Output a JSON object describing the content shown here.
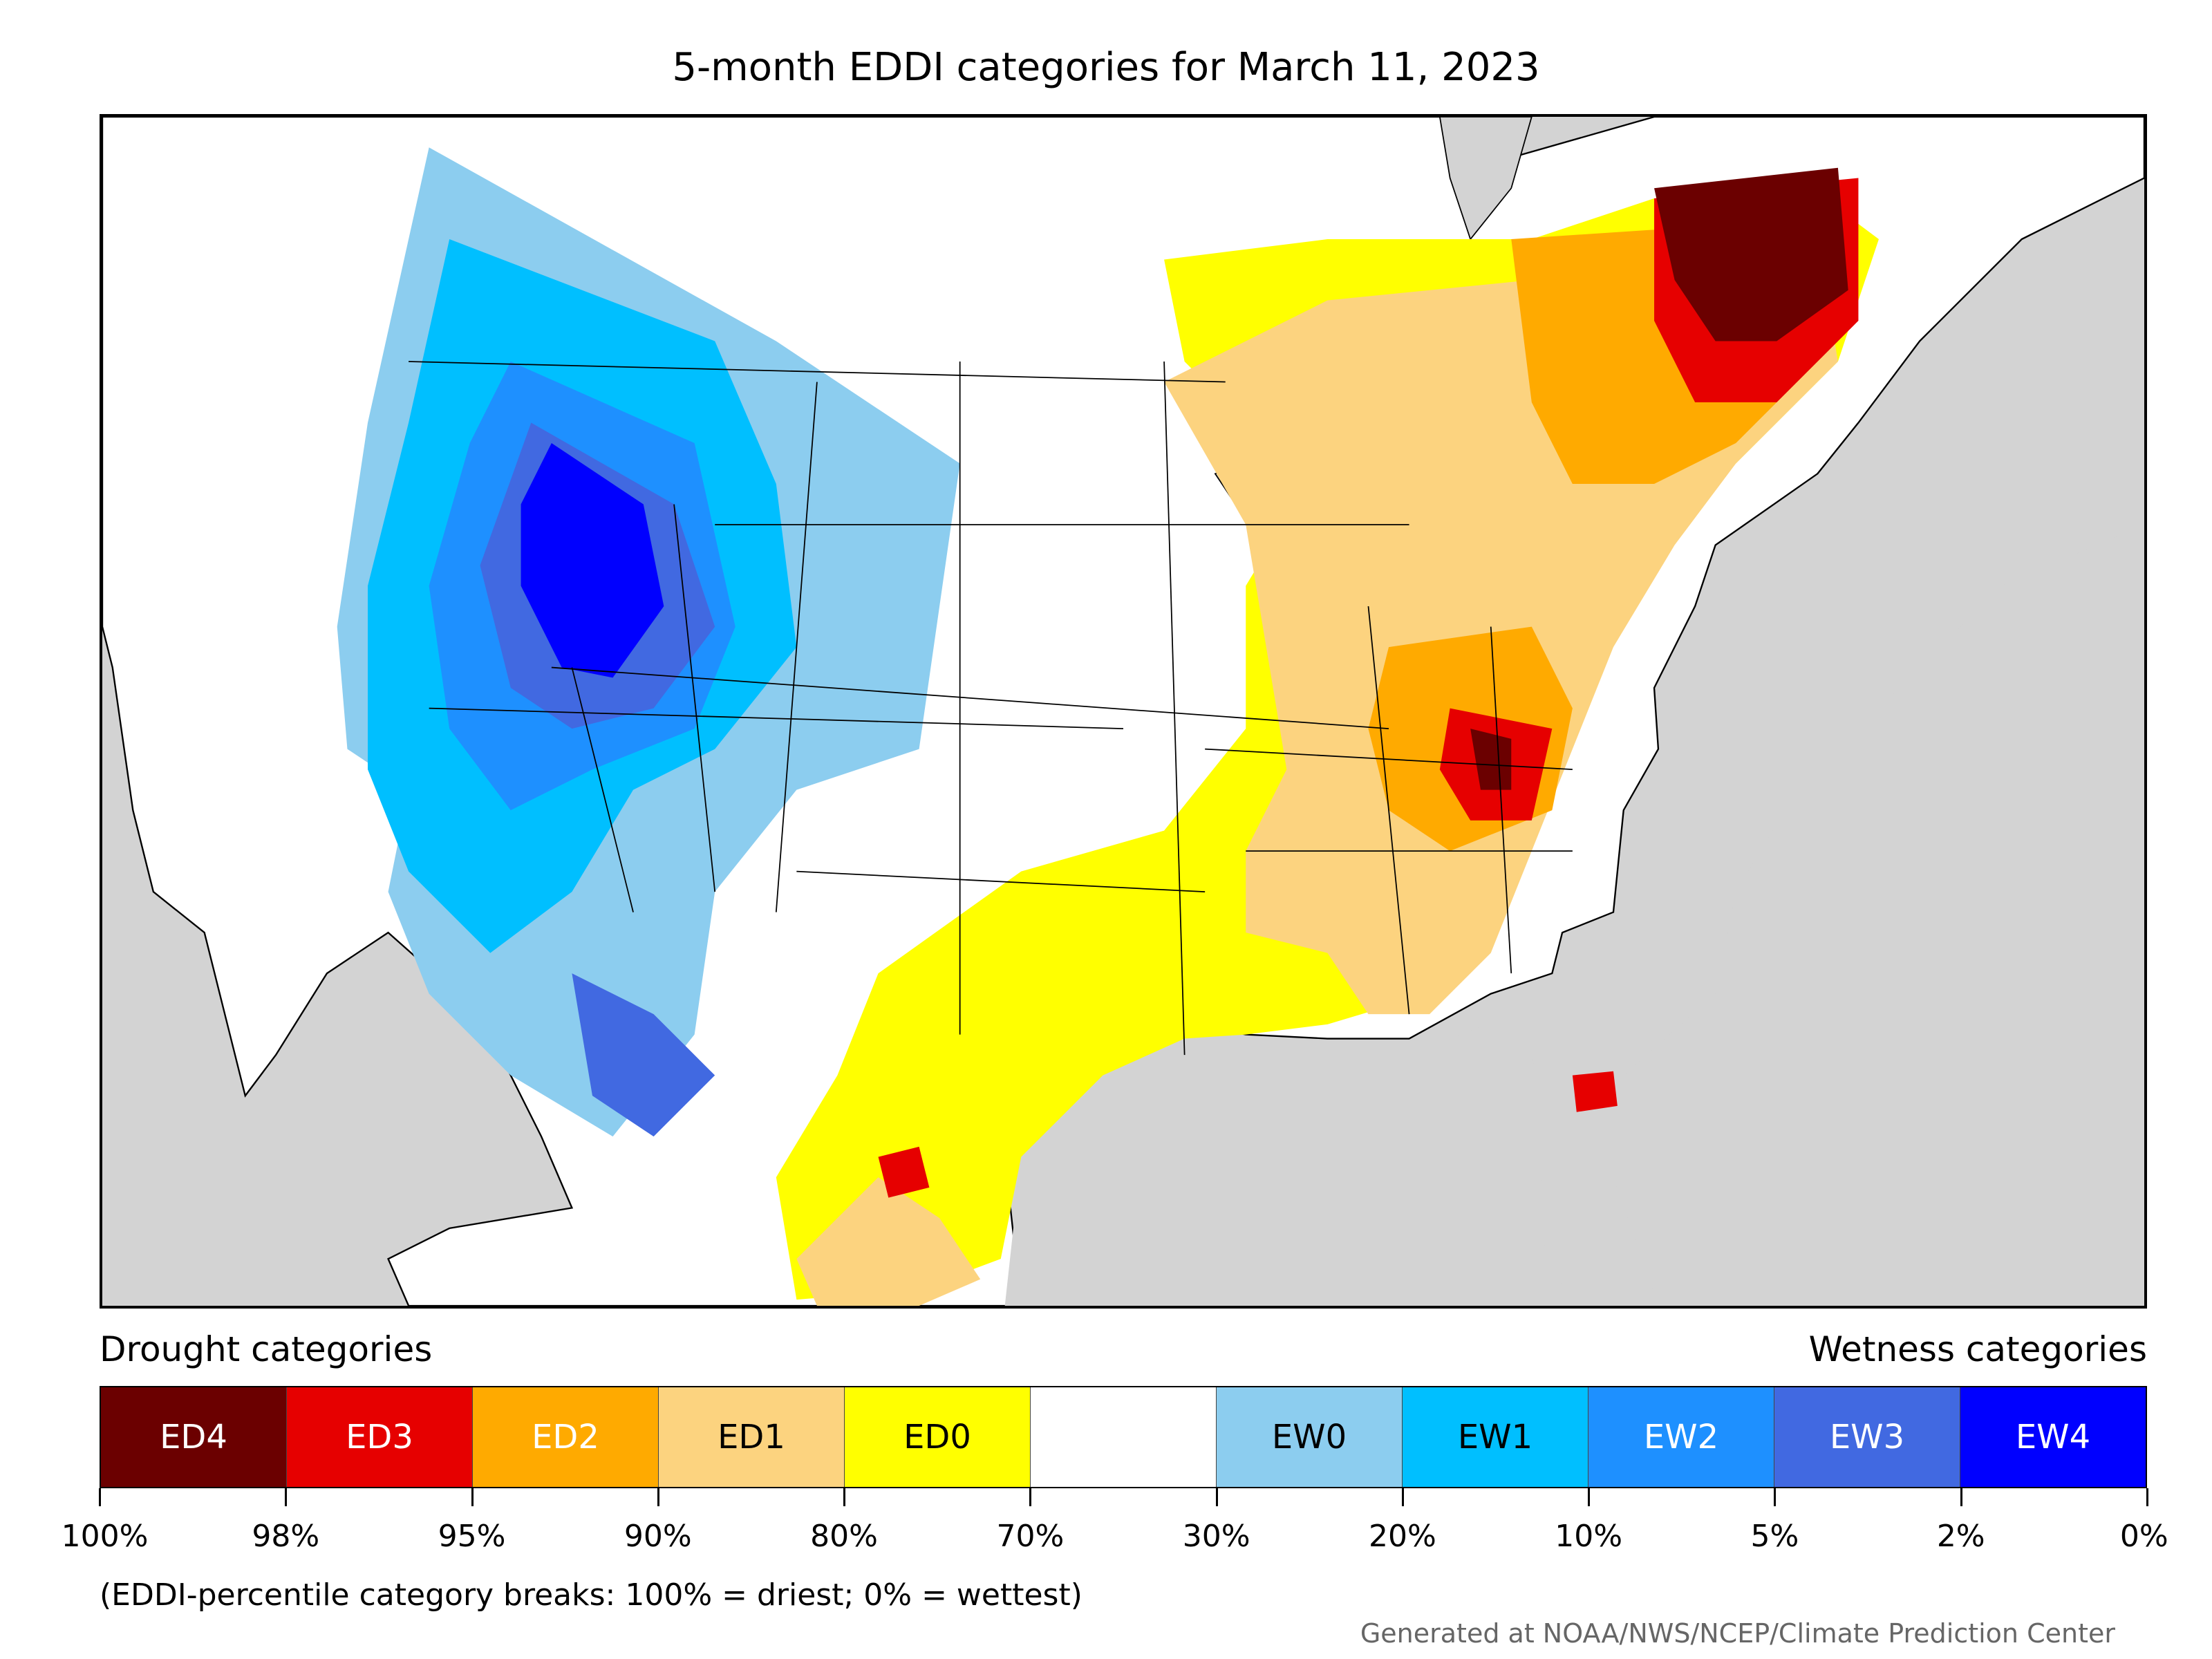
{
  "title": "5-month EDDI categories for March 11, 2023",
  "legend": {
    "left_label": "Drought categories",
    "right_label": "Wetness categories",
    "categories": [
      {
        "label": "ED4",
        "color": "#6b0000",
        "text_color": "#ffffff"
      },
      {
        "label": "ED3",
        "color": "#e60000",
        "text_color": "#ffffff"
      },
      {
        "label": "ED2",
        "color": "#ffaa00",
        "text_color": "#ffffff"
      },
      {
        "label": "ED1",
        "color": "#fcd37f",
        "text_color": "#000000"
      },
      {
        "label": "ED0",
        "color": "#ffff00",
        "text_color": "#000000"
      },
      {
        "label": "",
        "color": "#ffffff",
        "text_color": "#000000"
      },
      {
        "label": "EW0",
        "color": "#8ccdef",
        "text_color": "#000000"
      },
      {
        "label": "EW1",
        "color": "#00bfff",
        "text_color": "#000000"
      },
      {
        "label": "EW2",
        "color": "#1e90ff",
        "text_color": "#ffffff"
      },
      {
        "label": "EW3",
        "color": "#4169e1",
        "text_color": "#ffffff"
      },
      {
        "label": "EW4",
        "color": "#0000ff",
        "text_color": "#ffffff"
      }
    ],
    "ticks": [
      "100%",
      "98%",
      "95%",
      "90%",
      "80%",
      "70%",
      "30%",
      "20%",
      "10%",
      "5%",
      "2%",
      "0%"
    ]
  },
  "note": "(EDDI-percentile category breaks: 100% = driest; 0% = wettest)",
  "credit": "Generated at NOAA/NWS/NCEP/Climate Prediction Center",
  "map": {
    "background_color": "#d3d3d3",
    "land_color": "#ffffff",
    "water_color": "#d3d3d3"
  }
}
